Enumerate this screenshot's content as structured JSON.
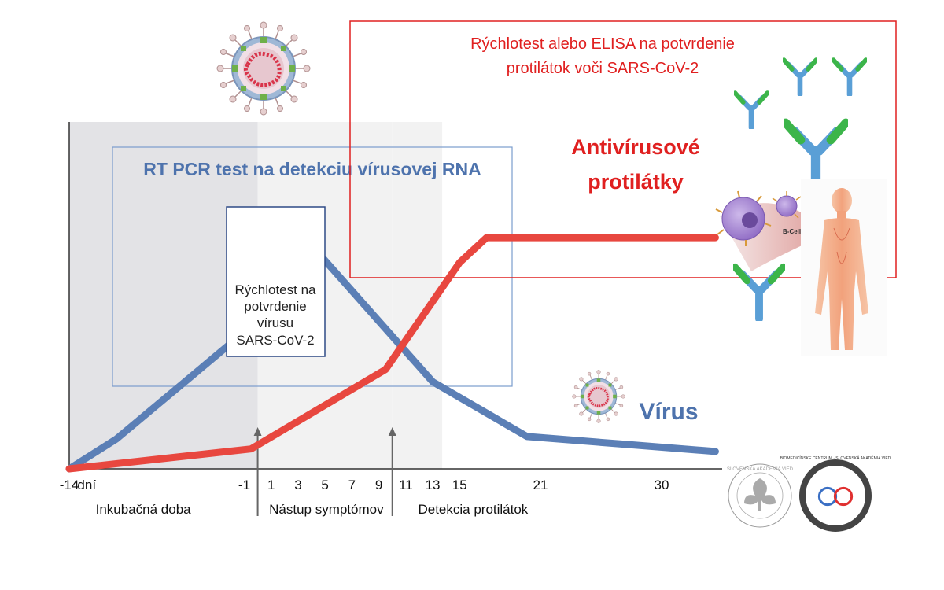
{
  "chart_data": {
    "type": "line",
    "x_ticks": [
      {
        "label": "-14",
        "x": -14
      },
      {
        "label": "dní",
        "x": -12.7
      },
      {
        "label": "-1",
        "x": -1
      },
      {
        "label": "1",
        "x": 1
      },
      {
        "label": "3",
        "x": 3
      },
      {
        "label": "5",
        "x": 5
      },
      {
        "label": "7",
        "x": 7
      },
      {
        "label": "9",
        "x": 9
      },
      {
        "label": "11",
        "x": 11
      },
      {
        "label": "13",
        "x": 13
      },
      {
        "label": "15",
        "x": 15
      },
      {
        "label": "21",
        "x": 21
      },
      {
        "label": "30",
        "x": 30
      }
    ],
    "xlim": [
      -14,
      34.5
    ],
    "ylim": [
      0,
      100
    ],
    "series": [
      {
        "name": "Vírus",
        "color": "#5b7fb6",
        "points": [
          [
            -14,
            0
          ],
          [
            -10.5,
            12
          ],
          [
            -1,
            55
          ],
          [
            3,
            96
          ],
          [
            13,
            35
          ],
          [
            20,
            13
          ],
          [
            27,
            10
          ],
          [
            34,
            7
          ]
        ]
      },
      {
        "name": "Antivírusové protilátky",
        "color": "#e8473f",
        "points": [
          [
            -14,
            0
          ],
          [
            -0.5,
            8
          ],
          [
            9.5,
            40
          ],
          [
            15,
            83
          ],
          [
            17,
            93
          ],
          [
            34,
            93
          ]
        ]
      }
    ],
    "phases": [
      {
        "label": "Inkubačná doba",
        "from": -14,
        "to": 0,
        "shade": "#e3e3e6"
      },
      {
        "label": "Nástup symptómov",
        "from": 0,
        "to": 10,
        "shade": "#f2f2f2"
      },
      {
        "label": "Detekcia protilátok",
        "from": 10,
        "to": 13.7,
        "shade": "#f2f2f2"
      }
    ],
    "arrows": [
      {
        "x": 0
      },
      {
        "x": 10
      }
    ],
    "annotations": {
      "pcr": "RT PCR test na detekciu vírusovej RNA",
      "rapid_virus": [
        "Rýchlotest na",
        "potvrdenie",
        "vírusu",
        "SARS-CoV-2"
      ],
      "elisa": [
        "Rýchlotest alebo ELISA na potvrdenie",
        "protilátok voči SARS-CoV-2"
      ],
      "antibodies": [
        "Antivírusové",
        "protilátky"
      ],
      "virus": "Vírus",
      "bcells": "B-Cells"
    },
    "colors": {
      "pcr_text": "#4e73ad",
      "red_text": "#e02020",
      "antibodies_text": "#e02020"
    }
  },
  "logos": {
    "sav_ring": "SLOVENSKÁ AKADÉMIA VIED",
    "bmc_ring": "BIOMEDICÍNSKE CENTRUM · SLOVENSKÁ AKADÉMIA VIED"
  }
}
